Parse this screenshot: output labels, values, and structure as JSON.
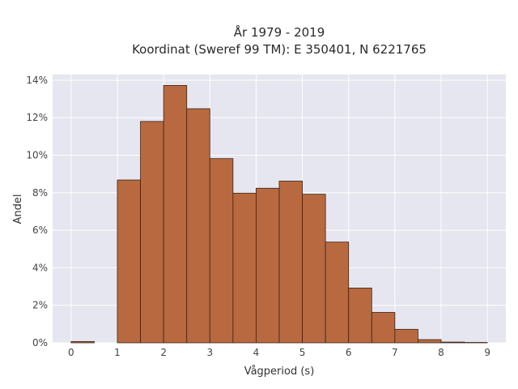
{
  "chart_data": {
    "type": "bar",
    "title_line1": "År 1979 - 2019",
    "title_line2": "Koordinat (Sweref 99 TM): E 350401, N 6221765",
    "xlabel": "Vågperiod (s)",
    "ylabel": "Andel",
    "bin_edges": [
      0,
      0.5,
      1,
      1.5,
      2,
      2.5,
      3,
      3.5,
      4,
      4.5,
      5,
      5.5,
      6,
      6.5,
      7,
      7.5,
      8,
      8.5,
      9
    ],
    "values": [
      0.07,
      0.0,
      8.68,
      11.8,
      13.72,
      12.48,
      9.82,
      7.98,
      8.24,
      8.62,
      7.92,
      5.37,
      2.92,
      1.62,
      0.72,
      0.17,
      0.04,
      0.02
    ],
    "x_ticks": [
      "0",
      "1",
      "2",
      "3",
      "4",
      "5",
      "6",
      "7",
      "8",
      "9"
    ],
    "y_ticks": [
      "0%",
      "2%",
      "4%",
      "6%",
      "8%",
      "10%",
      "12%",
      "14%"
    ],
    "xlim": [
      -0.4,
      9.4
    ],
    "ylim": [
      0,
      14.3
    ],
    "grid": true,
    "colors": {
      "bar_fill": "#b8693f",
      "bar_edge": "#3a2418",
      "plot_bg": "#e5e6ef",
      "grid": "#ffffff"
    }
  }
}
